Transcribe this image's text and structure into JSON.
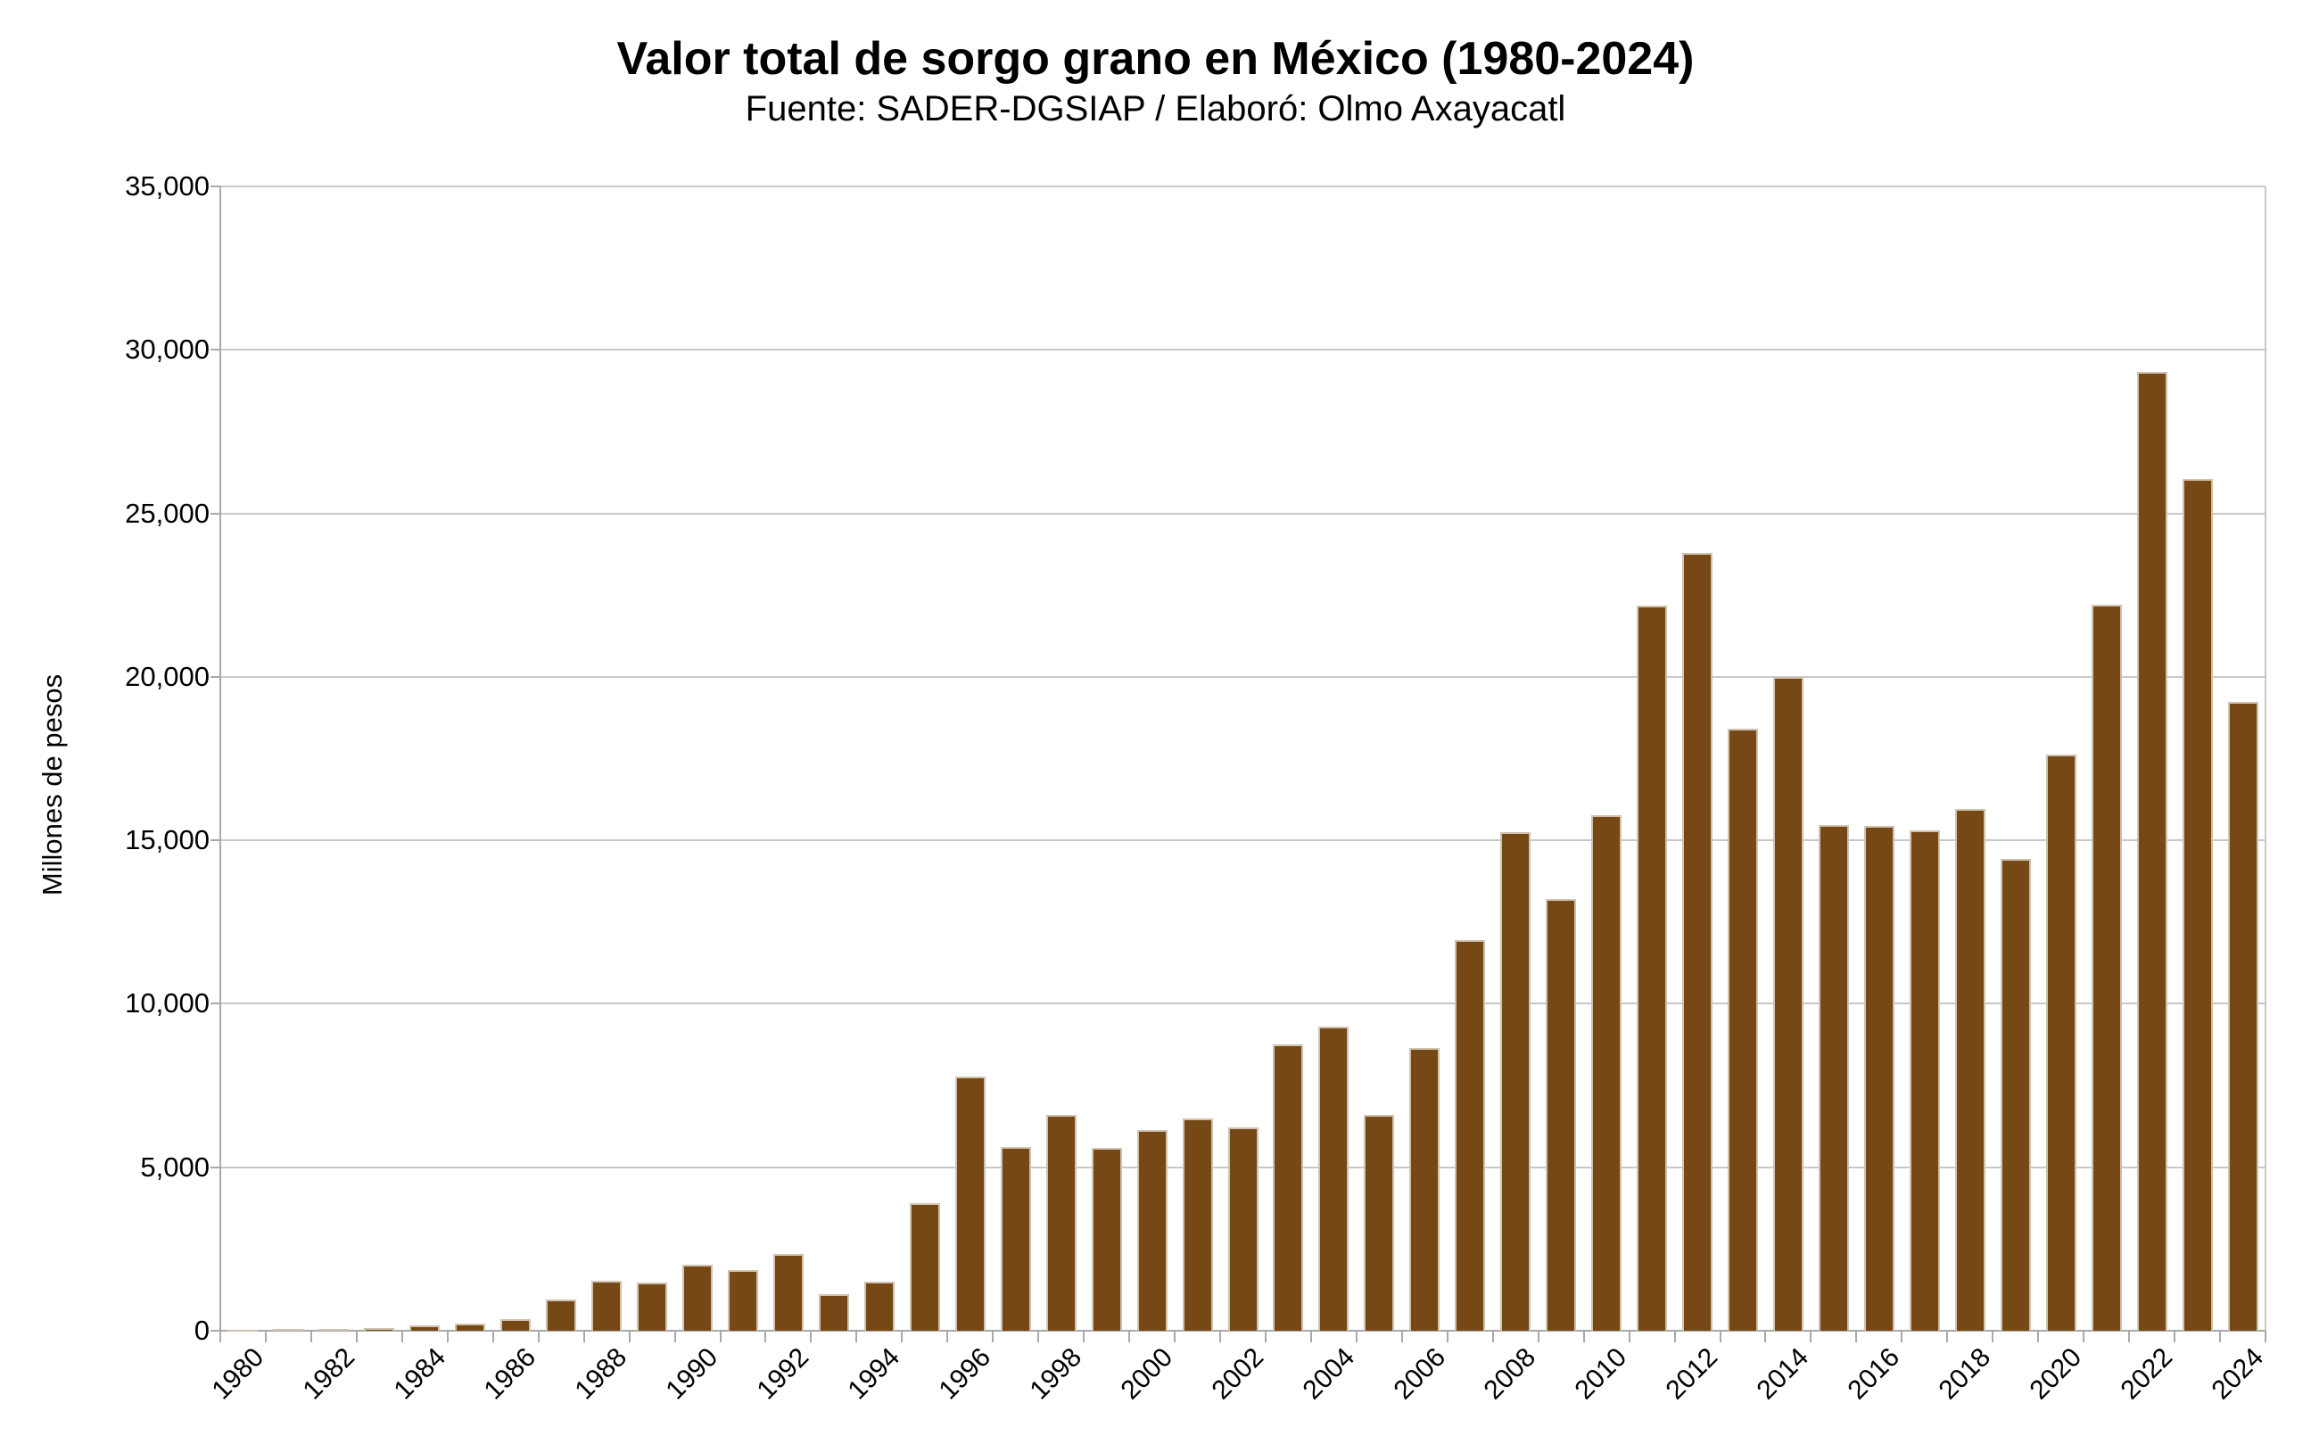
{
  "title": "Valor total de sorgo grano en México (1980-2024)",
  "subtitle": "Fuente: SADER-DGSIAP / Elaboró: Olmo Axayacatl",
  "chart_data": {
    "type": "bar",
    "title": "Valor total de sorgo grano en México (1980-2024)",
    "subtitle": "Fuente: SADER-DGSIAP / Elaboró: Olmo Axayacatl",
    "ylabel": "Millones de pesos",
    "xlabel": "",
    "ylim": [
      0,
      35000
    ],
    "ytick_step": 5000,
    "ytick_labels": [
      "0",
      "5,000",
      "10,000",
      "15,000",
      "20,000",
      "25,000",
      "30,000",
      "35,000"
    ],
    "xtick_labels": [
      "1980",
      "1982",
      "1984",
      "1986",
      "1988",
      "1990",
      "1992",
      "1994",
      "1996",
      "1998",
      "2000",
      "2002",
      "2004",
      "2006",
      "2008",
      "2010",
      "2012",
      "2014",
      "2016",
      "2018",
      "2020",
      "2022",
      "2024"
    ],
    "grid": true,
    "legend": "none",
    "categories": [
      1980,
      1981,
      1982,
      1983,
      1984,
      1985,
      1986,
      1987,
      1988,
      1989,
      1990,
      1991,
      1992,
      1993,
      1994,
      1995,
      1996,
      1997,
      1998,
      1999,
      2000,
      2001,
      2002,
      2003,
      2004,
      2005,
      2006,
      2007,
      2008,
      2009,
      2010,
      2011,
      2012,
      2013,
      2014,
      2015,
      2016,
      2017,
      2018,
      2019,
      2020,
      2021,
      2022,
      2023,
      2024
    ],
    "values": [
      40,
      65,
      60,
      95,
      155,
      225,
      350,
      965,
      1530,
      1475,
      2030,
      1865,
      2355,
      1110,
      1500,
      3900,
      7770,
      5620,
      6600,
      5600,
      6150,
      6500,
      6210,
      8770,
      9310,
      6590,
      8640,
      11940,
      15250,
      13190,
      15760,
      22180,
      23790,
      18410,
      20000,
      15480,
      15450,
      15300,
      15970,
      14420,
      17630,
      22200,
      29320,
      26060,
      19240
    ],
    "colors": {
      "bar_fill": "#764816",
      "bar_border": "#CFC2AE",
      "gridline": "#C8C8C8",
      "axis_line": "#A9A9A9",
      "plot_right_border": "#C8C8C8",
      "text": "#000000",
      "background": "#FFFFFF"
    }
  }
}
